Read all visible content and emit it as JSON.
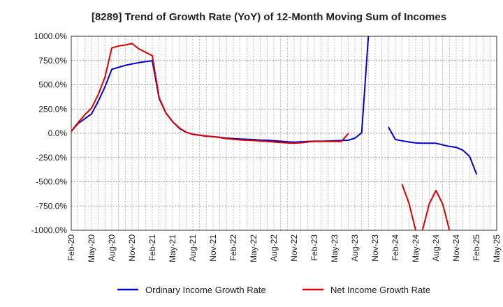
{
  "chart_data": {
    "type": "line",
    "title": "[8289]  Trend of Growth Rate (YoY) of 12-Month Moving Sum of Incomes",
    "xlabel": "",
    "ylabel": "",
    "ylim": [
      -1000,
      1000
    ],
    "yticks": [
      1000,
      750,
      500,
      250,
      0,
      -250,
      -500,
      -750,
      -1000
    ],
    "ytick_labels": [
      "1000.0%",
      "750.0%",
      "500.0%",
      "250.0%",
      "0.0%",
      "-250.0%",
      "-500.0%",
      "-750.0%",
      "-1000.0%"
    ],
    "x_start": "2020-02",
    "x_end": "2025-05",
    "xtick_labels": [
      "Feb-20",
      "May-20",
      "Aug-20",
      "Nov-20",
      "Feb-21",
      "May-21",
      "Aug-21",
      "Nov-21",
      "Feb-22",
      "May-22",
      "Aug-22",
      "Nov-22",
      "Feb-23",
      "May-23",
      "Aug-23",
      "Nov-23",
      "Feb-24",
      "May-24",
      "Aug-24",
      "Nov-24",
      "Feb-25",
      "May-25"
    ],
    "grid": true,
    "legend_position": "bottom",
    "series": [
      {
        "name": "Ordinary Income Growth Rate",
        "color": "#0000cc",
        "points": [
          [
            "2020-02",
            20
          ],
          [
            "2020-03",
            100
          ],
          [
            "2020-04",
            150
          ],
          [
            "2020-05",
            200
          ],
          [
            "2020-06",
            330
          ],
          [
            "2020-07",
            480
          ],
          [
            "2020-08",
            660
          ],
          [
            "2020-09",
            680
          ],
          [
            "2020-10",
            700
          ],
          [
            "2020-11",
            715
          ],
          [
            "2020-12",
            728
          ],
          [
            "2021-01",
            738
          ],
          [
            "2021-02",
            748
          ],
          [
            "2021-03",
            360
          ],
          [
            "2021-04",
            210
          ],
          [
            "2021-05",
            120
          ],
          [
            "2021-06",
            50
          ],
          [
            "2021-07",
            10
          ],
          [
            "2021-08",
            -10
          ],
          [
            "2021-09",
            -20
          ],
          [
            "2021-10",
            -30
          ],
          [
            "2021-11",
            -35
          ],
          [
            "2021-12",
            -42
          ],
          [
            "2022-01",
            -50
          ],
          [
            "2022-02",
            -55
          ],
          [
            "2022-03",
            -60
          ],
          [
            "2022-04",
            -62
          ],
          [
            "2022-05",
            -65
          ],
          [
            "2022-06",
            -70
          ],
          [
            "2022-07",
            -72
          ],
          [
            "2022-08",
            -78
          ],
          [
            "2022-09",
            -82
          ],
          [
            "2022-10",
            -88
          ],
          [
            "2022-11",
            -92
          ],
          [
            "2022-12",
            -88
          ],
          [
            "2023-01",
            -85
          ],
          [
            "2023-02",
            -82
          ],
          [
            "2023-03",
            -82
          ],
          [
            "2023-04",
            -80
          ],
          [
            "2023-05",
            -78
          ],
          [
            "2023-06",
            -75
          ],
          [
            "2023-07",
            -72
          ],
          [
            "2023-08",
            -50
          ],
          [
            "2023-09",
            5
          ],
          [
            "2023-10",
            1000
          ]
        ],
        "points_2": [
          [
            "2024-01",
            60
          ],
          [
            "2024-02",
            -65
          ],
          [
            "2024-03",
            -78
          ],
          [
            "2024-04",
            -90
          ],
          [
            "2024-05",
            -100
          ],
          [
            "2024-06",
            -102
          ],
          [
            "2024-07",
            -103
          ],
          [
            "2024-08",
            -103
          ],
          [
            "2024-09",
            -120
          ],
          [
            "2024-10",
            -135
          ],
          [
            "2024-11",
            -145
          ],
          [
            "2024-12",
            -175
          ],
          [
            "2025-01",
            -240
          ],
          [
            "2025-02",
            -420
          ]
        ]
      },
      {
        "name": "Net Income Growth Rate",
        "color": "#dd0000",
        "points": [
          [
            "2020-02",
            20
          ],
          [
            "2020-03",
            110
          ],
          [
            "2020-04",
            190
          ],
          [
            "2020-05",
            260
          ],
          [
            "2020-06",
            400
          ],
          [
            "2020-07",
            580
          ],
          [
            "2020-08",
            880
          ],
          [
            "2020-09",
            900
          ],
          [
            "2020-10",
            910
          ],
          [
            "2020-11",
            925
          ],
          [
            "2020-12",
            870
          ],
          [
            "2021-01",
            835
          ],
          [
            "2021-02",
            800
          ],
          [
            "2021-03",
            370
          ],
          [
            "2021-04",
            210
          ],
          [
            "2021-05",
            120
          ],
          [
            "2021-06",
            55
          ],
          [
            "2021-07",
            12
          ],
          [
            "2021-08",
            -12
          ],
          [
            "2021-09",
            -20
          ],
          [
            "2021-10",
            -28
          ],
          [
            "2021-11",
            -35
          ],
          [
            "2021-12",
            -45
          ],
          [
            "2022-01",
            -55
          ],
          [
            "2022-02",
            -62
          ],
          [
            "2022-03",
            -68
          ],
          [
            "2022-04",
            -72
          ],
          [
            "2022-05",
            -75
          ],
          [
            "2022-06",
            -80
          ],
          [
            "2022-07",
            -85
          ],
          [
            "2022-08",
            -90
          ],
          [
            "2022-09",
            -95
          ],
          [
            "2022-10",
            -100
          ],
          [
            "2022-11",
            -103
          ],
          [
            "2022-12",
            -98
          ],
          [
            "2023-01",
            -90
          ],
          [
            "2023-02",
            -85
          ],
          [
            "2023-03",
            -85
          ],
          [
            "2023-04",
            -85
          ],
          [
            "2023-05",
            -85
          ],
          [
            "2023-06",
            -85
          ],
          [
            "2023-07",
            -5
          ]
        ],
        "points_2": [
          [
            "2024-03",
            -530
          ],
          [
            "2024-04",
            -720
          ],
          [
            "2024-05",
            -1000
          ]
        ],
        "points_3": [
          [
            "2024-06",
            -1000
          ],
          [
            "2024-07",
            -730
          ],
          [
            "2024-08",
            -590
          ],
          [
            "2024-09",
            -730
          ],
          [
            "2024-10",
            -1000
          ]
        ]
      }
    ]
  }
}
